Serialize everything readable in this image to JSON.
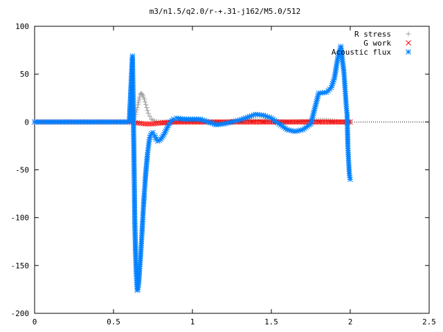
{
  "chart_data": {
    "type": "scatter",
    "title": "m3/n1.5/q2.0/r-+.31-j162/M5.0/512",
    "xlabel": "",
    "ylabel": "",
    "xlim": [
      0,
      2.5
    ],
    "ylim": [
      -200,
      100
    ],
    "x_ticks": [
      "0",
      "0.5",
      "1",
      "1.5",
      "2",
      "2.5"
    ],
    "y_ticks": [
      "100",
      "50",
      "0",
      "-50",
      "-100",
      "-150",
      "-200"
    ],
    "grid": false,
    "legend_position": "top-right",
    "series": [
      {
        "name": "R stress",
        "color": "#a0a0a0",
        "marker": "plus",
        "points": [
          [
            0,
            0
          ],
          [
            0.2,
            0
          ],
          [
            0.4,
            0
          ],
          [
            0.6,
            0
          ],
          [
            0.62,
            0.5
          ],
          [
            0.63,
            3
          ],
          [
            0.64,
            8
          ],
          [
            0.65,
            15
          ],
          [
            0.655,
            18
          ],
          [
            0.66,
            22
          ],
          [
            0.665,
            26
          ],
          [
            0.67,
            29
          ],
          [
            0.675,
            30
          ],
          [
            0.68,
            29
          ],
          [
            0.685,
            28
          ],
          [
            0.69,
            26
          ],
          [
            0.695,
            24
          ],
          [
            0.7,
            21
          ],
          [
            0.705,
            18
          ],
          [
            0.71,
            15
          ],
          [
            0.715,
            12
          ],
          [
            0.72,
            9
          ],
          [
            0.73,
            6
          ],
          [
            0.74,
            3
          ],
          [
            0.76,
            1
          ],
          [
            0.8,
            0
          ],
          [
            0.9,
            0
          ],
          [
            1.0,
            0
          ],
          [
            1.2,
            0
          ],
          [
            1.4,
            2
          ],
          [
            1.6,
            0
          ],
          [
            1.75,
            1
          ],
          [
            1.8,
            2
          ],
          [
            1.85,
            2
          ],
          [
            1.9,
            1
          ],
          [
            1.95,
            0
          ],
          [
            2.0,
            0
          ]
        ]
      },
      {
        "name": "G work",
        "color": "#ff0000",
        "marker": "cross",
        "points": [
          [
            0,
            0
          ],
          [
            0.3,
            0
          ],
          [
            0.6,
            0
          ],
          [
            0.65,
            -1
          ],
          [
            0.7,
            -2
          ],
          [
            0.75,
            -2
          ],
          [
            0.8,
            -1
          ],
          [
            0.9,
            0
          ],
          [
            1.0,
            0
          ],
          [
            1.1,
            0
          ],
          [
            1.2,
            0
          ],
          [
            1.3,
            0
          ],
          [
            1.4,
            0
          ],
          [
            1.5,
            0
          ],
          [
            1.6,
            0
          ],
          [
            1.7,
            0
          ],
          [
            1.8,
            0
          ],
          [
            1.9,
            0
          ],
          [
            2.0,
            0
          ]
        ]
      },
      {
        "name": "Acoustic flux",
        "color": "#0080ff",
        "marker": "star",
        "points": [
          [
            0,
            0
          ],
          [
            0.1,
            0
          ],
          [
            0.2,
            0
          ],
          [
            0.3,
            0
          ],
          [
            0.4,
            0
          ],
          [
            0.5,
            0
          ],
          [
            0.6,
            0
          ],
          [
            0.62,
            69
          ],
          [
            0.63,
            -41
          ],
          [
            0.635,
            -106
          ],
          [
            0.64,
            -139
          ],
          [
            0.645,
            -162
          ],
          [
            0.65,
            -176
          ],
          [
            0.655,
            -175
          ],
          [
            0.66,
            -168
          ],
          [
            0.665,
            -155
          ],
          [
            0.67,
            -145
          ],
          [
            0.675,
            -131
          ],
          [
            0.68,
            -117
          ],
          [
            0.685,
            -102
          ],
          [
            0.69,
            -88
          ],
          [
            0.695,
            -75
          ],
          [
            0.7,
            -63
          ],
          [
            0.705,
            -52
          ],
          [
            0.71,
            -43
          ],
          [
            0.715,
            -34
          ],
          [
            0.72,
            -27
          ],
          [
            0.725,
            -21
          ],
          [
            0.73,
            -16
          ],
          [
            0.74,
            -12
          ],
          [
            0.75,
            -11
          ],
          [
            0.76,
            -14
          ],
          [
            0.77,
            -18
          ],
          [
            0.78,
            -20
          ],
          [
            0.8,
            -18
          ],
          [
            0.82,
            -13
          ],
          [
            0.84,
            -6
          ],
          [
            0.86,
            0
          ],
          [
            0.88,
            3
          ],
          [
            0.9,
            4
          ],
          [
            0.95,
            3
          ],
          [
            1.0,
            3
          ],
          [
            1.05,
            3
          ],
          [
            1.1,
            0
          ],
          [
            1.15,
            -3
          ],
          [
            1.2,
            -2
          ],
          [
            1.25,
            0
          ],
          [
            1.3,
            2
          ],
          [
            1.35,
            5
          ],
          [
            1.4,
            8
          ],
          [
            1.45,
            7
          ],
          [
            1.5,
            4
          ],
          [
            1.55,
            -2
          ],
          [
            1.6,
            -8
          ],
          [
            1.65,
            -10
          ],
          [
            1.7,
            -8
          ],
          [
            1.75,
            -2
          ],
          [
            1.8,
            30
          ],
          [
            1.85,
            31
          ],
          [
            1.88,
            36
          ],
          [
            1.9,
            46
          ],
          [
            1.92,
            66
          ],
          [
            1.94,
            79
          ],
          [
            1.945,
            75
          ],
          [
            1.95,
            65
          ],
          [
            1.96,
            52
          ],
          [
            1.965,
            40
          ],
          [
            1.97,
            28
          ],
          [
            1.975,
            16
          ],
          [
            1.98,
            8
          ],
          [
            1.985,
            -26
          ],
          [
            1.99,
            -42
          ],
          [
            1.995,
            -56
          ],
          [
            2.0,
            -60
          ]
        ]
      }
    ]
  }
}
